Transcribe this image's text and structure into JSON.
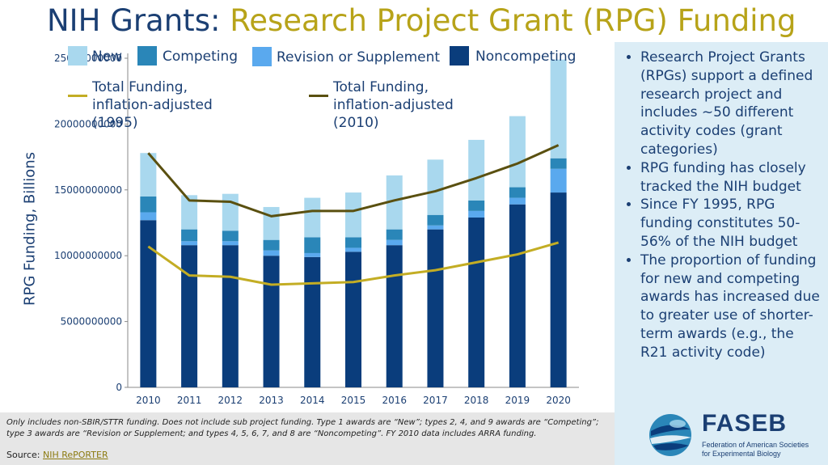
{
  "title": {
    "part1": "NIH Grants: ",
    "part2": "Research Project Grant (RPG) Funding"
  },
  "colors": {
    "new": "#a9d8ee",
    "competing": "#2a86b8",
    "revision": "#5aa9ee",
    "noncompeting": "#0a3d7c",
    "line1995": "#c3ad24",
    "line2010": "#5a5010",
    "title_blue": "#1b3f73",
    "title_gold": "#b7a319",
    "sidebar_bg": "#dcedf6"
  },
  "chart_data": {
    "type": "bar",
    "stacked": true,
    "categories": [
      "2010",
      "2011",
      "2012",
      "2013",
      "2014",
      "2015",
      "2016",
      "2017",
      "2018",
      "2019",
      "2020"
    ],
    "series": [
      {
        "name": "Noncompeting",
        "values": [
          12700000000,
          10800000000,
          10800000000,
          10000000000,
          9900000000,
          10300000000,
          10800000000,
          12000000000,
          12900000000,
          13900000000,
          14800000000
        ]
      },
      {
        "name": "Revision or Supplement",
        "values": [
          600000000,
          300000000,
          300000000,
          400000000,
          300000000,
          300000000,
          400000000,
          300000000,
          500000000,
          500000000,
          1800000000
        ]
      },
      {
        "name": "Competing",
        "values": [
          1200000000,
          900000000,
          800000000,
          800000000,
          1200000000,
          800000000,
          800000000,
          800000000,
          800000000,
          800000000,
          800000000
        ]
      },
      {
        "name": "New",
        "values": [
          3300000000,
          2600000000,
          2800000000,
          2500000000,
          3000000000,
          3400000000,
          4100000000,
          4200000000,
          4600000000,
          5400000000,
          7500000000
        ]
      }
    ],
    "lines": [
      {
        "name": "Total Funding, inflation-adjusted (1995)",
        "values": [
          10700000000,
          8500000000,
          8400000000,
          7800000000,
          7900000000,
          8000000000,
          8500000000,
          8900000000,
          9500000000,
          10100000000,
          11000000000
        ]
      },
      {
        "name": "Total Funding, inflation-adjusted (2010)",
        "values": [
          17800000000,
          14200000000,
          14100000000,
          13000000000,
          13400000000,
          13400000000,
          14200000000,
          14900000000,
          15900000000,
          17000000000,
          18400000000
        ]
      }
    ],
    "ylabel": "RPG Funding, Billions",
    "ylim": [
      0,
      25000000000
    ],
    "yticks": [
      "0",
      "5000000000",
      "10000000000",
      "15000000000",
      "20000000000",
      "25000000000"
    ],
    "grid": false
  },
  "legend": {
    "new": "New",
    "competing": "Competing",
    "revision": "Revision or Supplement",
    "noncompeting": "Noncompeting",
    "line1995": "Total Funding, inflation-adjusted (1995)",
    "line2010": "Total Funding, inflation-adjusted (2010)"
  },
  "sidebar": {
    "bullets": [
      "Research Project Grants (RPGs) support a defined research project and includes ~50 different activity codes (grant categories)",
      "RPG funding has closely tracked the NIH budget",
      "Since FY 1995, RPG funding constitutes 50-56% of the NIH budget",
      "The proportion of funding for new and competing awards has increased due to greater use of shorter-term awards (e.g., the R21 activity code)"
    ]
  },
  "footer": {
    "note": "Only includes non-SBIR/STTR funding. Does not include sub project funding. Type 1 awards are “New”; types 2, 4, and 9 awards are “Competing”; type 3 awards are “Revision or Supplement; and types 4, 5, 6, 7, and 8 are “Noncompeting”. FY 2010 data includes ARRA funding.",
    "source_label": "Source: ",
    "source_link": "NIH RePORTER"
  },
  "logo": {
    "brand": "FASEB",
    "subtitle": "Federation of American Societies for Experimental Biology"
  }
}
